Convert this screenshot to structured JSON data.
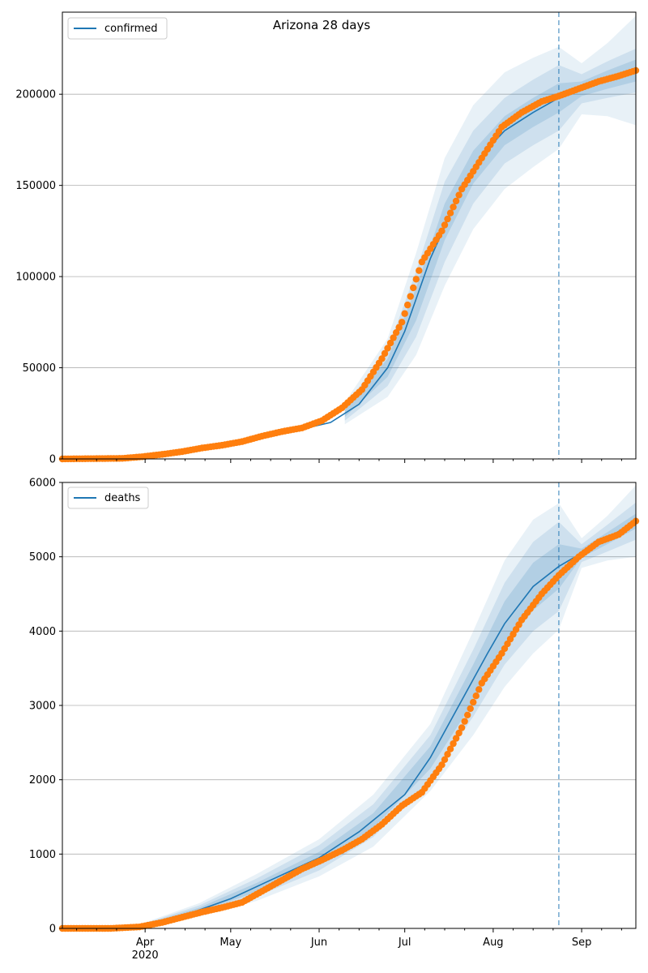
{
  "figure": {
    "title": "Arizona 28 days"
  },
  "colors": {
    "line": "#1f77b4",
    "observed": "#ff7f0e",
    "band": "#1f77b4",
    "grid": "#b0b0b0",
    "forecast_marker": "#1f77b4"
  },
  "chart_data": [
    {
      "type": "line",
      "panel": "confirmed",
      "legend": "confirmed",
      "x_axis": "date",
      "xlim": [
        "2020-03-03",
        "2020-09-20"
      ],
      "ylim": [
        0,
        245000
      ],
      "y_ticks": [
        0,
        50000,
        100000,
        150000,
        200000
      ],
      "grid": "horizontal",
      "legend_position": "top-left",
      "forecast_start": "2020-08-24",
      "model": {
        "x": [
          "2020-03-03",
          "2020-03-15",
          "2020-03-25",
          "2020-04-05",
          "2020-04-15",
          "2020-04-25",
          "2020-05-05",
          "2020-05-15",
          "2020-05-25",
          "2020-06-05",
          "2020-06-15",
          "2020-06-25",
          "2020-07-01",
          "2020-07-10",
          "2020-07-20",
          "2020-07-30",
          "2020-08-05",
          "2020-08-15",
          "2020-08-24",
          "2020-09-01",
          "2020-09-10",
          "2020-09-20"
        ],
        "y": [
          0,
          200,
          500,
          2000,
          4000,
          6000,
          9000,
          13000,
          16000,
          20000,
          30000,
          50000,
          70000,
          110000,
          145000,
          170000,
          180000,
          190000,
          198000,
          203000,
          208000,
          213000
        ]
      },
      "bands": {
        "x": [
          "2020-06-10",
          "2020-06-25",
          "2020-07-05",
          "2020-07-15",
          "2020-07-25",
          "2020-08-05",
          "2020-08-15",
          "2020-08-24",
          "2020-09-01",
          "2020-09-10",
          "2020-09-20"
        ],
        "center": [
          25000,
          50000,
          85000,
          130000,
          160000,
          180000,
          190000,
          198000,
          203000,
          208000,
          213000
        ],
        "inner": [
          2000,
          5000,
          9000,
          10000,
          9000,
          8000,
          8000,
          8000,
          4000,
          5000,
          6000
        ],
        "mid": [
          4000,
          10000,
          18000,
          22000,
          20000,
          18000,
          18000,
          18000,
          8000,
          10000,
          12000
        ],
        "outer": [
          6000,
          16000,
          28000,
          35000,
          34000,
          32000,
          30000,
          28000,
          14000,
          20000,
          30000
        ]
      },
      "observed": {
        "x": [
          "2020-03-03",
          "2020-03-10",
          "2020-03-17",
          "2020-03-24",
          "2020-03-31",
          "2020-04-07",
          "2020-04-14",
          "2020-04-21",
          "2020-04-28",
          "2020-05-05",
          "2020-05-12",
          "2020-05-19",
          "2020-05-26",
          "2020-06-02",
          "2020-06-09",
          "2020-06-16",
          "2020-06-23",
          "2020-06-30",
          "2020-07-07",
          "2020-07-14",
          "2020-07-21",
          "2020-07-28",
          "2020-08-04",
          "2020-08-11",
          "2020-08-18",
          "2020-08-24",
          "2020-08-31",
          "2020-09-07",
          "2020-09-14",
          "2020-09-20"
        ],
        "y": [
          0,
          100,
          200,
          300,
          1200,
          2500,
          4000,
          6000,
          7500,
          9500,
          12500,
          15000,
          17000,
          21000,
          28000,
          38000,
          55000,
          75000,
          108000,
          125000,
          148000,
          165000,
          182000,
          190000,
          196000,
          199000,
          203000,
          207000,
          210000,
          213000
        ]
      }
    },
    {
      "type": "line",
      "panel": "deaths",
      "legend": "deaths",
      "x_axis": "date",
      "xlim": [
        "2020-03-03",
        "2020-09-20"
      ],
      "ylim": [
        0,
        6000
      ],
      "y_ticks": [
        0,
        1000,
        2000,
        3000,
        4000,
        5000,
        6000
      ],
      "x_tick_labels": [
        "Apr\n2020",
        "May",
        "Jun",
        "Jul",
        "Aug",
        "Sep"
      ],
      "grid": "horizontal",
      "legend_position": "top-left",
      "forecast_start": "2020-08-24",
      "model": {
        "x": [
          "2020-03-03",
          "2020-03-20",
          "2020-04-01",
          "2020-04-15",
          "2020-05-01",
          "2020-05-15",
          "2020-06-01",
          "2020-06-15",
          "2020-07-01",
          "2020-07-10",
          "2020-07-20",
          "2020-07-30",
          "2020-08-05",
          "2020-08-15",
          "2020-08-24",
          "2020-09-01",
          "2020-09-10",
          "2020-09-20"
        ],
        "y": [
          0,
          0,
          50,
          180,
          400,
          650,
          950,
          1300,
          1800,
          2300,
          3000,
          3700,
          4100,
          4600,
          4870,
          5050,
          5250,
          5480
        ]
      },
      "bands": {
        "x": [
          "2020-04-01",
          "2020-04-20",
          "2020-05-10",
          "2020-06-01",
          "2020-06-20",
          "2020-07-10",
          "2020-07-25",
          "2020-08-05",
          "2020-08-15",
          "2020-08-24",
          "2020-09-01",
          "2020-09-10",
          "2020-09-20"
        ],
        "center": [
          50,
          250,
          550,
          950,
          1450,
          2300,
          3300,
          4100,
          4600,
          4870,
          5050,
          5250,
          5480
        ],
        "inner": [
          10,
          30,
          60,
          80,
          100,
          150,
          250,
          300,
          320,
          300,
          60,
          80,
          100
        ],
        "mid": [
          20,
          60,
          120,
          170,
          220,
          300,
          450,
          550,
          600,
          600,
          120,
          180,
          250
        ],
        "outer": [
          30,
          90,
          180,
          250,
          350,
          450,
          700,
          850,
          900,
          850,
          200,
          300,
          480
        ]
      },
      "observed": {
        "x": [
          "2020-03-03",
          "2020-03-20",
          "2020-03-30",
          "2020-04-07",
          "2020-04-14",
          "2020-04-21",
          "2020-04-28",
          "2020-05-05",
          "2020-05-12",
          "2020-05-19",
          "2020-05-26",
          "2020-06-02",
          "2020-06-09",
          "2020-06-16",
          "2020-06-23",
          "2020-06-30",
          "2020-07-07",
          "2020-07-14",
          "2020-07-21",
          "2020-07-28",
          "2020-08-04",
          "2020-08-11",
          "2020-08-18",
          "2020-08-24",
          "2020-08-31",
          "2020-09-07",
          "2020-09-14",
          "2020-09-20"
        ],
        "y": [
          0,
          0,
          20,
          80,
          150,
          220,
          280,
          350,
          500,
          650,
          800,
          920,
          1050,
          1200,
          1400,
          1650,
          1830,
          2200,
          2700,
          3300,
          3700,
          4150,
          4500,
          4750,
          5000,
          5200,
          5300,
          5480
        ]
      }
    }
  ]
}
